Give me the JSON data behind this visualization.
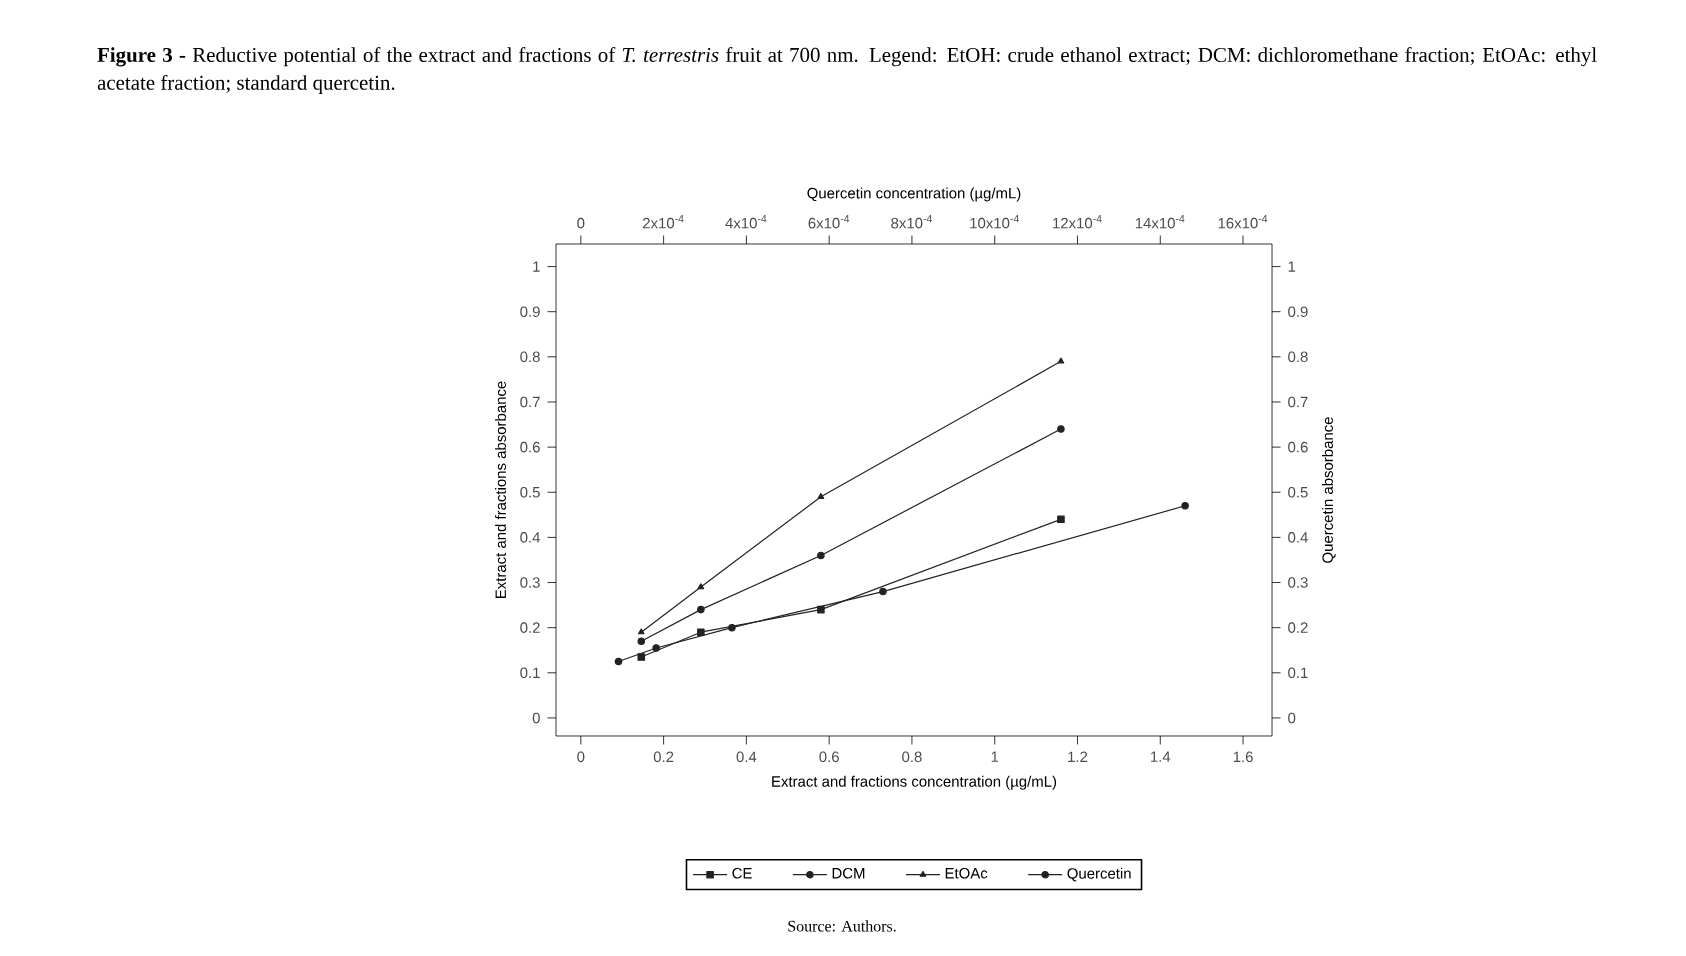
{
  "chart_data": {
    "type": "line",
    "title": "**Figure 3 -** Reductive potential of the extract and fractions of *T. terrestris* fruit at 700 nm. Legend: EtOH: crude ethanol extract; DCM: dichloromethane fraction; EtOAc: ethyl acetate fraction; standard quercetin.",
    "annotations": [
      "Source: Authors."
    ],
    "xlabel": "Extract and fractions concentration (µg/mL)",
    "ylabel": "Extract and fractions absorbance",
    "x2label": "Quercetin concentration (µg/mL)",
    "y2label": "Quercetin absorbance",
    "xlim": [
      -0.06,
      1.67
    ],
    "xticks": [
      0,
      0.2,
      0.4,
      0.6,
      0.8,
      1,
      1.2,
      1.4,
      1.6
    ],
    "ylim": [
      -0.04,
      1.05
    ],
    "yticks": [
      0,
      0.1,
      0.2,
      0.3,
      0.4,
      0.5,
      0.6,
      0.7,
      0.8,
      0.9,
      1
    ],
    "x2lim": [
      -6e-05,
      0.00167
    ],
    "x2ticks": [
      {
        "value": 0,
        "label": "0"
      },
      {
        "value": 0.0002,
        "label": "2x10$^{-4}$"
      },
      {
        "value": 0.0004,
        "label": "4x10$^{-4}$"
      },
      {
        "value": 0.0006,
        "label": "6x10$^{-4}$"
      },
      {
        "value": 0.0008,
        "label": "8x10$^{-4}$"
      },
      {
        "value": 0.001,
        "label": "10x10$^{-4}$"
      },
      {
        "value": 0.0012,
        "label": "12x10$^{-4}$"
      },
      {
        "value": 0.0014,
        "label": "14x10$^{-4}$"
      },
      {
        "value": 0.0016,
        "label": "16x10$^{-4}$"
      }
    ],
    "y2lim": [
      -0.04,
      1.05
    ],
    "y2ticks": [
      0,
      0.1,
      0.2,
      0.3,
      0.4,
      0.5,
      0.6,
      0.7,
      0.8,
      0.9,
      1
    ],
    "legend": "bottom",
    "series": [
      {
        "name": "CE",
        "color": "#222222",
        "marker": "square",
        "x": [
          0.146,
          0.29,
          0.58,
          1.16
        ],
        "values": [
          0.135,
          0.19,
          0.24,
          0.44
        ]
      },
      {
        "name": "DCM",
        "color": "#222222",
        "marker": "circle",
        "x": [
          0.146,
          0.29,
          0.58,
          1.16
        ],
        "values": [
          0.17,
          0.24,
          0.36,
          0.64
        ]
      },
      {
        "name": "EtOAc",
        "color": "#222222",
        "marker": "triangle",
        "x": [
          0.146,
          0.29,
          0.58,
          1.16
        ],
        "values": [
          0.19,
          0.29,
          0.49,
          0.79
        ]
      },
      {
        "name": "Quercetin",
        "color": "#222222",
        "marker": "circle",
        "axis": "x2",
        "x": [
          9.1e-05,
          0.000182,
          0.000365,
          0.00073,
          0.00146
        ],
        "values": [
          0.125,
          0.155,
          0.2,
          0.28,
          0.47
        ]
      }
    ]
  }
}
